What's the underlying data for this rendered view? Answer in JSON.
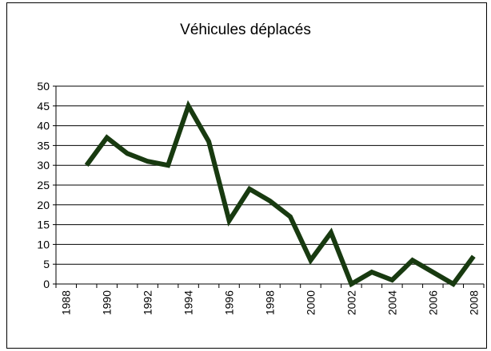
{
  "chart_data": {
    "type": "line",
    "title": "Véhicules déplacés",
    "categories": [
      "1988",
      null,
      "1990",
      null,
      "1992",
      null,
      "1994",
      null,
      "1996",
      null,
      "1998",
      null,
      "2000",
      null,
      "2002",
      null,
      "2004",
      null,
      "2006",
      null,
      "2008"
    ],
    "series": [
      {
        "name": "Véhicules déplacés",
        "color": "#183a10",
        "values": [
          null,
          30,
          37,
          33,
          31,
          30,
          45,
          36,
          16,
          24,
          21,
          17,
          6,
          13,
          0,
          3,
          1,
          6,
          3,
          0,
          7
        ]
      }
    ],
    "ylim": [
      0,
      50
    ],
    "yticks": [
      0,
      5,
      10,
      15,
      20,
      25,
      30,
      35,
      40,
      45,
      50
    ],
    "grid": true
  }
}
